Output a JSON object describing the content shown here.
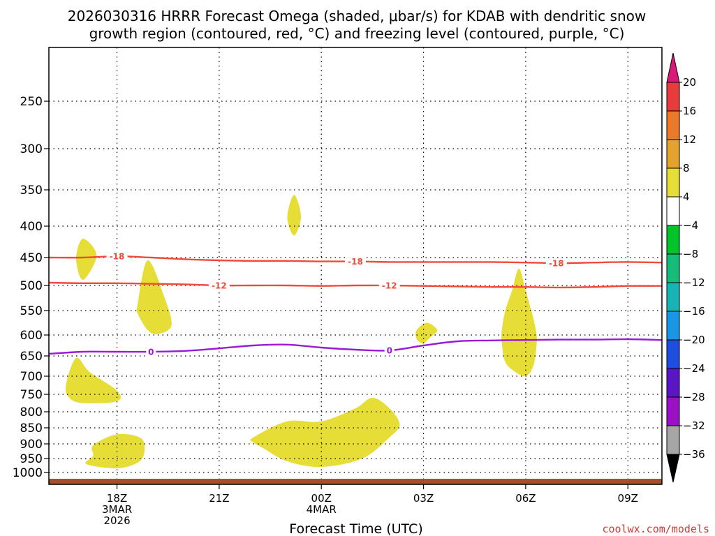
{
  "header": {
    "title_line1": "2026030316 HRRR Forecast Omega (shaded, μbar/s) for KDAB with dendritic snow",
    "title_line2": "growth region (contoured, red, °C) and freezing level (contoured, purple, °C)"
  },
  "footer": {
    "xlabel": "Forecast Time (UTC)",
    "credit": "coolwx.com/models"
  },
  "colors": {
    "dgz_line": "#f04a3a",
    "freezing_line": "#9a1ad6",
    "omega_fill": "#e6dd36",
    "ground": "#a0522d",
    "grid": "#000000"
  },
  "chart_data": {
    "type": "time-height",
    "title": "2026030316 HRRR Forecast Omega (shaded, μbar/s) for KDAB with dendritic snow growth region (contoured, red, °C) and freezing level (contoured, purple, °C)",
    "xlabel": "Forecast Time (UTC)",
    "ylabel": "",
    "x_units": "forecast hours from 2026-03-03 16Z",
    "xlim": [
      0,
      18
    ],
    "y_units": "hPa",
    "ylim": [
      1040,
      195
    ],
    "y_ticks": [
      250,
      300,
      350,
      400,
      450,
      500,
      550,
      600,
      650,
      700,
      750,
      800,
      850,
      900,
      950,
      1000
    ],
    "x_ticks": [
      {
        "hour": 2,
        "lines": [
          "18Z",
          "3MAR",
          "2026"
        ]
      },
      {
        "hour": 5,
        "lines": [
          "21Z"
        ]
      },
      {
        "hour": 8,
        "lines": [
          "00Z",
          "4MAR"
        ]
      },
      {
        "hour": 11,
        "lines": [
          "03Z"
        ]
      },
      {
        "hour": 14,
        "lines": [
          "06Z"
        ]
      },
      {
        "hour": 17,
        "lines": [
          "09Z"
        ]
      }
    ],
    "grid": true,
    "contours": [
      {
        "name": "dgz-minus18",
        "label": "-18",
        "color": "#f04a3a",
        "label_at": [
          2.0,
          9.0,
          14.9
        ],
        "points": [
          [
            0,
            450
          ],
          [
            1,
            450
          ],
          [
            2,
            448
          ],
          [
            3,
            450
          ],
          [
            4,
            453
          ],
          [
            5,
            455
          ],
          [
            6,
            456
          ],
          [
            7,
            456
          ],
          [
            8,
            457
          ],
          [
            9,
            457
          ],
          [
            10,
            458
          ],
          [
            11,
            458
          ],
          [
            12,
            458
          ],
          [
            13,
            458
          ],
          [
            14,
            459
          ],
          [
            15,
            460
          ],
          [
            16,
            459
          ],
          [
            17,
            458
          ],
          [
            18,
            459
          ]
        ]
      },
      {
        "name": "dgz-minus12",
        "label": "-12",
        "color": "#f04a3a",
        "label_at": [
          5.0,
          10.0
        ],
        "points": [
          [
            0,
            495
          ],
          [
            1,
            496
          ],
          [
            2,
            496
          ],
          [
            3,
            497
          ],
          [
            4,
            498
          ],
          [
            5,
            500
          ],
          [
            6,
            500
          ],
          [
            7,
            500
          ],
          [
            8,
            501
          ],
          [
            9,
            500
          ],
          [
            10,
            500
          ],
          [
            11,
            501
          ],
          [
            12,
            502
          ],
          [
            13,
            503
          ],
          [
            14,
            503
          ],
          [
            15,
            504
          ],
          [
            16,
            503
          ],
          [
            17,
            501
          ],
          [
            18,
            501
          ]
        ]
      },
      {
        "name": "freezing-level",
        "label": "0",
        "color": "#9a1ad6",
        "label_at": [
          3.0,
          10.0
        ],
        "points": [
          [
            0,
            645
          ],
          [
            1,
            640
          ],
          [
            2,
            640
          ],
          [
            3,
            640
          ],
          [
            4,
            638
          ],
          [
            5,
            632
          ],
          [
            6,
            625
          ],
          [
            7,
            623
          ],
          [
            8,
            630
          ],
          [
            9,
            635
          ],
          [
            10,
            637
          ],
          [
            11,
            625
          ],
          [
            12,
            615
          ],
          [
            13,
            613
          ],
          [
            14,
            612
          ],
          [
            15,
            611
          ],
          [
            16,
            611
          ],
          [
            17,
            610
          ],
          [
            18,
            612
          ]
        ]
      }
    ],
    "filled_regions": [
      {
        "name": "omega-blob-1",
        "range": "4 to 8",
        "points": [
          [
            0.8,
            452
          ],
          [
            1.0,
            420
          ],
          [
            1.4,
            447
          ],
          [
            1.0,
            490
          ]
        ]
      },
      {
        "name": "omega-blob-2",
        "range": "4 to 8",
        "points": [
          [
            2.6,
            540
          ],
          [
            2.9,
            455
          ],
          [
            3.4,
            525
          ],
          [
            3.6,
            580
          ],
          [
            3.2,
            598
          ],
          [
            2.9,
            590
          ],
          [
            2.6,
            555
          ]
        ]
      },
      {
        "name": "omega-blob-3",
        "range": "4 to 8",
        "points": [
          [
            7.0,
            388
          ],
          [
            7.2,
            357
          ],
          [
            7.4,
            387
          ],
          [
            7.2,
            415
          ]
        ]
      },
      {
        "name": "omega-blob-4",
        "range": "4 to 8",
        "points": [
          [
            10.8,
            590
          ],
          [
            11.1,
            575
          ],
          [
            11.4,
            590
          ],
          [
            11.2,
            605
          ],
          [
            11.0,
            620
          ],
          [
            10.8,
            610
          ]
        ]
      },
      {
        "name": "omega-blob-5",
        "range": "4 to 8",
        "points": [
          [
            13.4,
            550
          ],
          [
            13.6,
            510
          ],
          [
            13.8,
            470
          ],
          [
            14.0,
            510
          ],
          [
            14.3,
            590
          ],
          [
            14.3,
            640
          ],
          [
            14.2,
            680
          ],
          [
            14.0,
            700
          ],
          [
            13.7,
            690
          ],
          [
            13.4,
            665
          ],
          [
            13.3,
            620
          ],
          [
            13.3,
            590
          ]
        ]
      },
      {
        "name": "omega-blob-6",
        "range": "4 to 8",
        "points": [
          [
            0.5,
            725
          ],
          [
            0.8,
            655
          ],
          [
            1.2,
            690
          ],
          [
            2.0,
            740
          ],
          [
            2.0,
            770
          ],
          [
            1.0,
            775
          ],
          [
            0.6,
            760
          ]
        ]
      },
      {
        "name": "omega-blob-7",
        "range": "4 to 8",
        "points": [
          [
            1.3,
            905
          ],
          [
            2.0,
            870
          ],
          [
            2.7,
            882
          ],
          [
            2.8,
            930
          ],
          [
            2.6,
            965
          ],
          [
            2.0,
            985
          ],
          [
            1.1,
            970
          ],
          [
            1.3,
            940
          ]
        ]
      },
      {
        "name": "omega-blob-8",
        "range": "4 to 8",
        "points": [
          [
            6.0,
            880
          ],
          [
            7.0,
            830
          ],
          [
            8.0,
            830
          ],
          [
            9.0,
            790
          ],
          [
            9.5,
            760
          ],
          [
            10.0,
            790
          ],
          [
            10.3,
            840
          ],
          [
            10.0,
            880
          ],
          [
            9.2,
            950
          ],
          [
            8.0,
            980
          ],
          [
            7.0,
            960
          ],
          [
            6.3,
            915
          ],
          [
            6.0,
            895
          ]
        ]
      }
    ],
    "ground": {
      "from": 1025,
      "to": 1040
    },
    "colorbar": {
      "levels": [
        20,
        16,
        12,
        8,
        4,
        -4,
        -8,
        -12,
        -16,
        -20,
        -24,
        -28,
        -32,
        -36
      ],
      "labels": [
        "20",
        "16",
        "12",
        "8",
        "4",
        "−4",
        "−8",
        "−12",
        "−16",
        "−20",
        "−24",
        "−28",
        "−32",
        "−36"
      ],
      "colors": [
        "#e83c3c",
        "#ea7a2a",
        "#e3a32c",
        "#e6dd36",
        "#ffffff",
        "#00c428",
        "#15bd78",
        "#18b4b4",
        "#1a96e6",
        "#1e4ee0",
        "#5a16c4",
        "#9a10c4",
        "#a6a6a6"
      ],
      "extend_top_color": "#d9187a",
      "extend_bottom_color": "#000000"
    }
  }
}
